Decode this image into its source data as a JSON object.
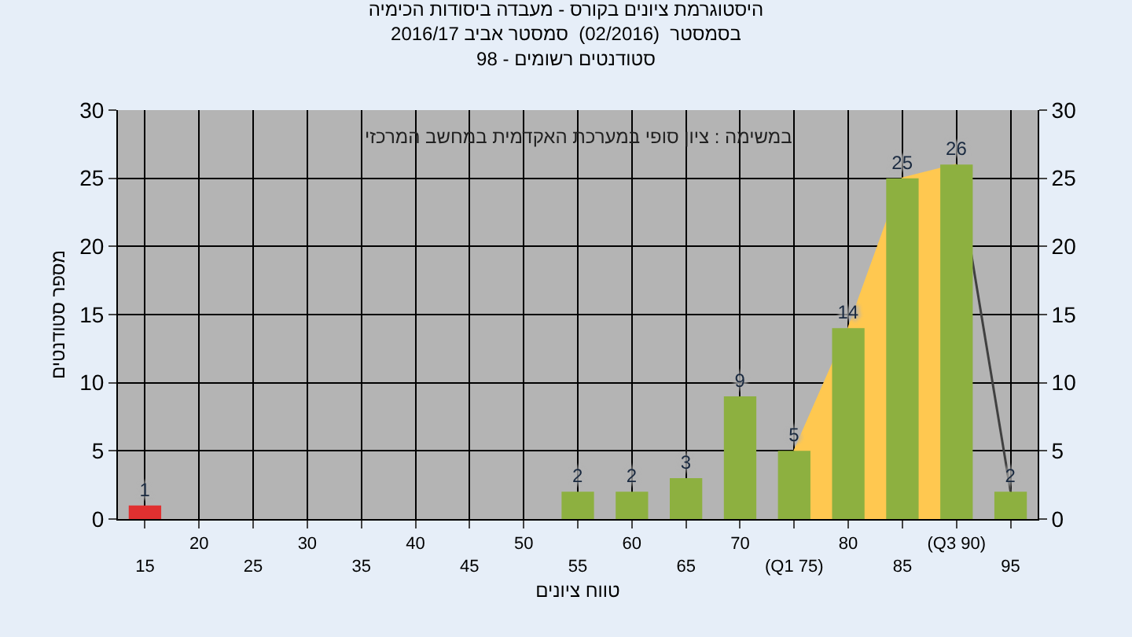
{
  "chart_data": {
    "type": "bar",
    "title": "היסטוגרמת ציונים בקורס - מעבדה ביסודות הכימיה\nבסמסטר  (02/2016)  סמסטר אביב 2016/17\nסטודנטים רשומים - 98",
    "xlabel": "טווח ציונים",
    "ylabel": "מספר סטודנטים",
    "annotations": [
      "במשימה : ציון סופי במערכת האקדמית במחשב המרכזי"
    ],
    "categories": [
      "15",
      "20",
      "25",
      "30",
      "35",
      "40",
      "45",
      "50",
      "55",
      "60",
      "65",
      "70",
      "(Q1 75)",
      "80",
      "85",
      "(Q3 90)",
      "95"
    ],
    "series": [
      {
        "type": "area",
        "color": "#ffc850",
        "values": [
          null,
          null,
          null,
          null,
          null,
          null,
          null,
          null,
          null,
          null,
          null,
          null,
          5,
          14,
          25,
          26,
          null
        ]
      },
      {
        "type": "line",
        "color": "#404040",
        "values": [
          null,
          null,
          null,
          null,
          null,
          null,
          null,
          null,
          null,
          null,
          null,
          null,
          null,
          null,
          null,
          26,
          2
        ]
      },
      {
        "colors": [
          "#e03030",
          "#8db040",
          "#8db040",
          "#8db040",
          "#8db040",
          "#8db040",
          "#8db040",
          "#8db040",
          "#8db040",
          "#8db040",
          "#8db040",
          "#8db040",
          "#8db040",
          "#8db040",
          "#8db040",
          "#8db040",
          "#8db040"
        ],
        "values": [
          1,
          0,
          0,
          0,
          0,
          0,
          0,
          0,
          2,
          2,
          3,
          9,
          5,
          14,
          25,
          26,
          2
        ],
        "value_labels": [
          "1",
          null,
          null,
          null,
          null,
          null,
          null,
          null,
          "2",
          "2",
          "3",
          "9",
          "5",
          "14",
          "25",
          "26",
          "2"
        ]
      }
    ],
    "ylim": [
      0,
      30
    ],
    "yticks": [
      0,
      5,
      10,
      15,
      20,
      25,
      30
    ],
    "y2lim": [
      0,
      30
    ],
    "y2ticks": [
      0,
      5,
      10,
      15,
      20,
      25,
      30
    ],
    "grid": true
  }
}
